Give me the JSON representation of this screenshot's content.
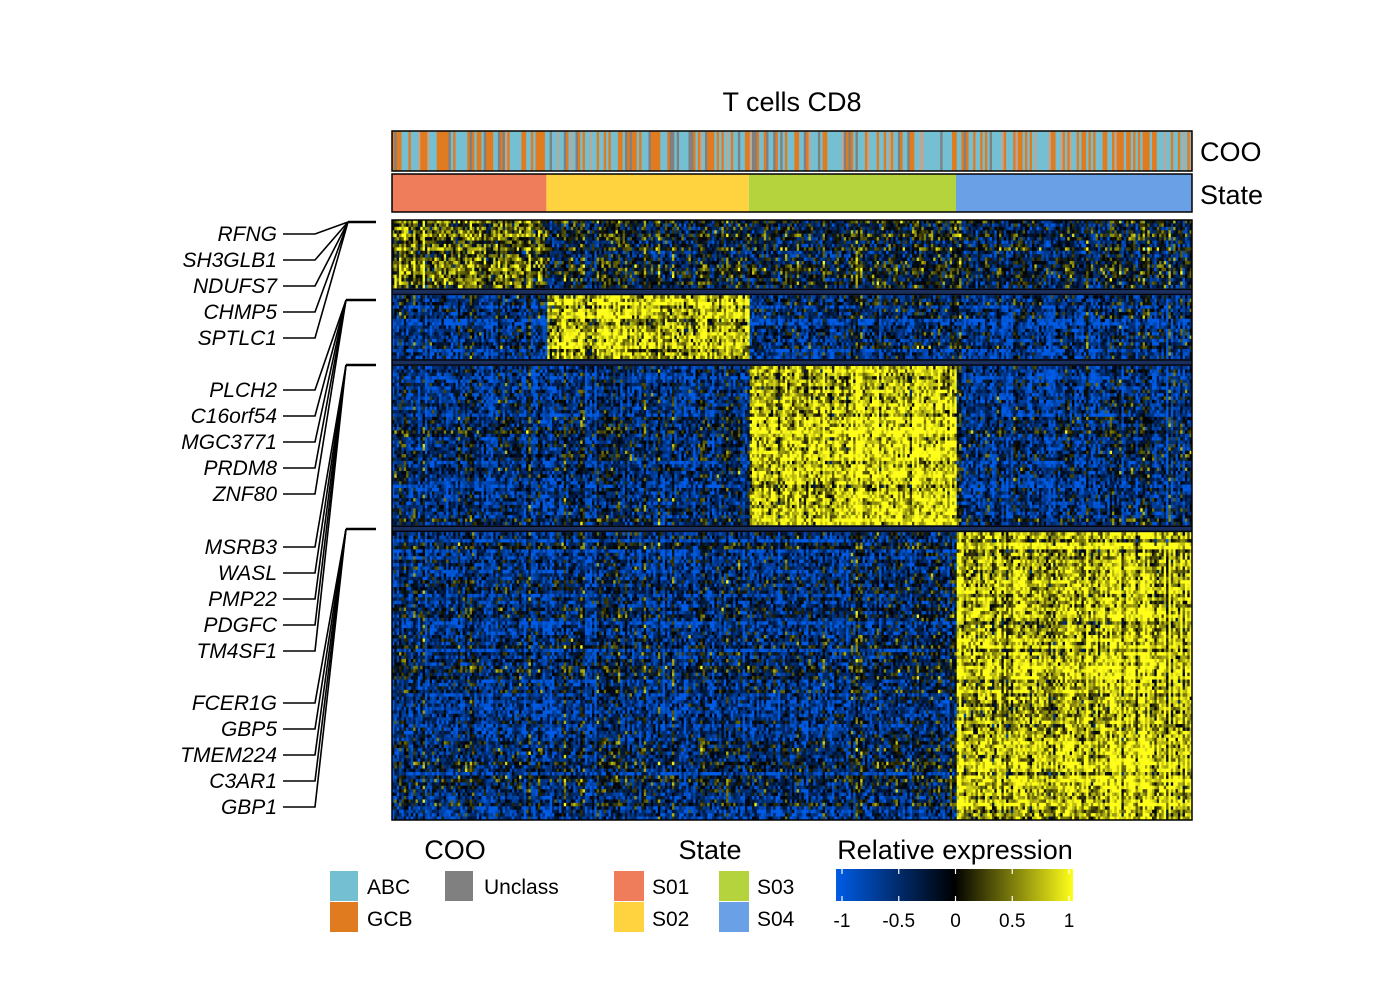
{
  "chart_data": {
    "type": "heatmap",
    "title": "T cells CD8",
    "annotation_tracks": [
      {
        "name": "COO",
        "categories": [
          "ABC",
          "GCB",
          "Unclass"
        ]
      },
      {
        "name": "State",
        "categories": [
          "S01",
          "S02",
          "S03",
          "S04"
        ]
      }
    ],
    "state_column_fractions": {
      "S01": 0.193,
      "S02": 0.253,
      "S03": 0.259,
      "S04": 0.295
    },
    "gene_cluster_row_fractions": [
      0.118,
      0.11,
      0.275,
      0.497
    ],
    "gene_cluster_high_state": [
      "S01",
      "S02",
      "S03",
      "S04"
    ],
    "gene_labels": [
      "RFNG",
      "SH3GLB1",
      "NDUFS7",
      "CHMP5",
      "SPTLC1",
      "PLCH2",
      "C16orf54",
      "MGC3771",
      "PRDM8",
      "ZNF80",
      "MSRB3",
      "WASL",
      "PMP22",
      "PDGFC",
      "TM4SF1",
      "FCER1G",
      "GBP5",
      "TMEM224",
      "C3AR1",
      "GBP1"
    ],
    "gene_label_groups": [
      [
        0,
        1,
        2,
        3,
        4
      ],
      [
        5,
        6,
        7,
        8,
        9
      ],
      [
        10,
        11,
        12,
        13,
        14
      ],
      [
        15,
        16,
        17,
        18,
        19
      ]
    ],
    "legend": {
      "coo_title": "COO",
      "coo_items": [
        {
          "label": "ABC",
          "color": "#74bfd1"
        },
        {
          "label": "GCB",
          "color": "#e07b1f"
        },
        {
          "label": "Unclass",
          "color": "#808080"
        }
      ],
      "state_title": "State",
      "state_items": [
        {
          "label": "S01",
          "color": "#ef7d5c"
        },
        {
          "label": "S02",
          "color": "#ffd23f"
        },
        {
          "label": "S03",
          "color": "#b5d33d"
        },
        {
          "label": "S04",
          "color": "#6aa1e6"
        }
      ],
      "expr_title": "Relative expression",
      "expr_ticks": [
        "-1",
        "-0.5",
        "0",
        "0.5",
        "1"
      ],
      "expr_tick_values": [
        -1,
        -0.5,
        0,
        0.5,
        1
      ],
      "expr_range": [
        -1,
        1
      ],
      "expr_colors": {
        "low": "#005ce6",
        "mid": "#000000",
        "high": "#ffff1a"
      }
    }
  }
}
